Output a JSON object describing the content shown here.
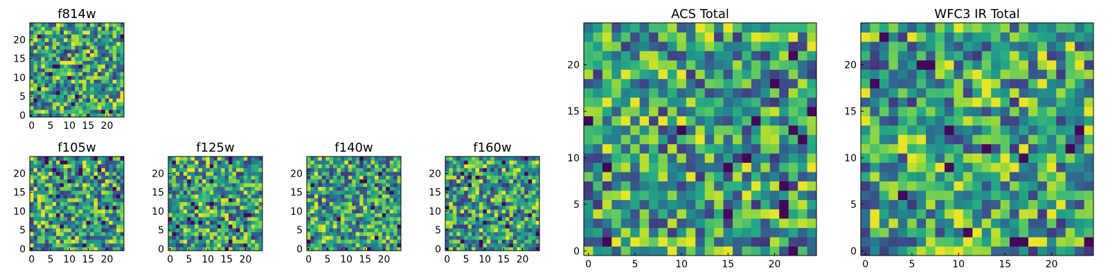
{
  "chart_data": [
    {
      "id": "f814w",
      "type": "heatmap",
      "title": "f814w",
      "grid_size": 25,
      "colormap": "viridis",
      "xticks": [
        "0",
        "5",
        "10",
        "15",
        "20"
      ],
      "yticks": [
        "0",
        "5",
        "10",
        "15",
        "20"
      ],
      "seed": 11
    },
    {
      "id": "f105w",
      "type": "heatmap",
      "title": "f105w",
      "grid_size": 25,
      "colormap": "viridis",
      "xticks": [
        "0",
        "5",
        "10",
        "15",
        "20"
      ],
      "yticks": [
        "0",
        "5",
        "10",
        "15",
        "20"
      ],
      "seed": 23
    },
    {
      "id": "f125w",
      "type": "heatmap",
      "title": "f125w",
      "grid_size": 25,
      "colormap": "viridis",
      "xticks": [
        "0",
        "5",
        "10",
        "15",
        "20"
      ],
      "yticks": [
        "0",
        "5",
        "10",
        "15",
        "20"
      ],
      "seed": 37
    },
    {
      "id": "f140w",
      "type": "heatmap",
      "title": "f140w",
      "grid_size": 25,
      "colormap": "viridis",
      "xticks": [
        "0",
        "5",
        "10",
        "15",
        "20"
      ],
      "yticks": [
        "0",
        "5",
        "10",
        "15",
        "20"
      ],
      "seed": 41
    },
    {
      "id": "f160w",
      "type": "heatmap",
      "title": "f160w",
      "grid_size": 25,
      "colormap": "viridis",
      "xticks": [
        "0",
        "5",
        "10",
        "15",
        "20"
      ],
      "yticks": [
        "0",
        "5",
        "10",
        "15",
        "20"
      ],
      "seed": 53
    },
    {
      "id": "acs-total",
      "type": "heatmap",
      "title": "ACS Total",
      "grid_size": 25,
      "colormap": "viridis",
      "xticks": [
        "0",
        "5",
        "10",
        "15",
        "20"
      ],
      "yticks": [
        "0",
        "5",
        "10",
        "15",
        "20"
      ],
      "seed": 67
    },
    {
      "id": "wfc3-ir-total",
      "type": "heatmap",
      "title": "WFC3 IR Total",
      "grid_size": 25,
      "colormap": "viridis",
      "xticks": [
        "0",
        "5",
        "10",
        "15",
        "20"
      ],
      "yticks": [
        "0",
        "5",
        "10",
        "15",
        "20"
      ],
      "seed": 79
    }
  ]
}
